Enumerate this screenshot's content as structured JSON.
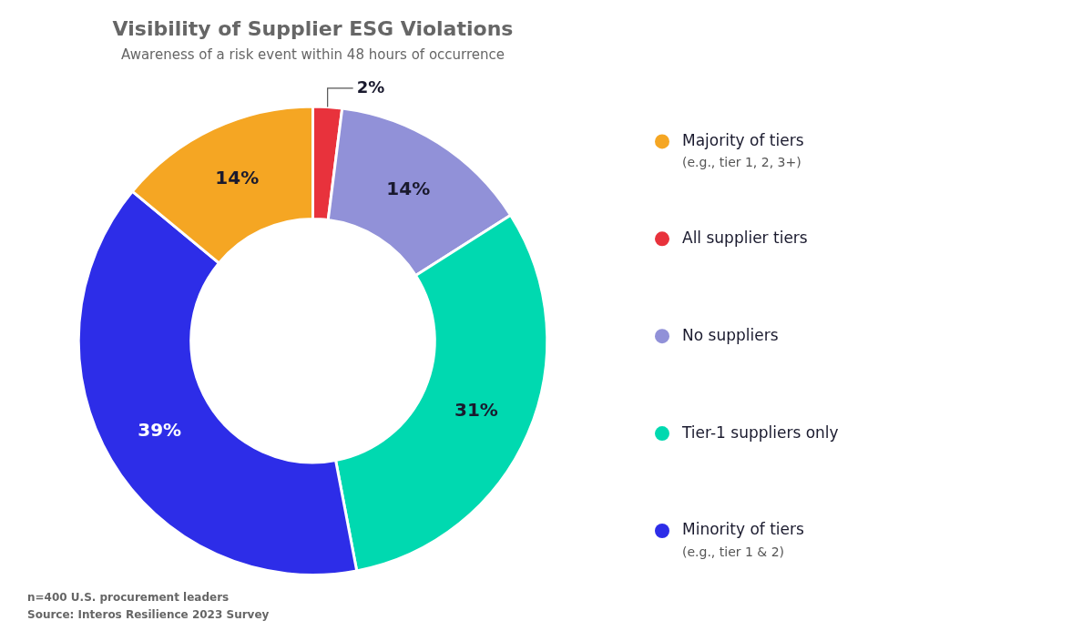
{
  "chart_data": {
    "type": "doughnut",
    "title": "Visibility of Supplier ESG Violations",
    "subtitle": "Awareness of a risk event within 48 hours of occurrence",
    "categories": [
      "All supplier tiers",
      "No suppliers",
      "Tier-1 suppliers only",
      "Minority of tiers",
      "Majority of tiers"
    ],
    "values": [
      2,
      14,
      31,
      39,
      14
    ],
    "value_labels": [
      "2%",
      "14%",
      "31%",
      "39%",
      "14%"
    ],
    "colors": [
      "#e8323c",
      "#9191d8",
      "#00d9b0",
      "#2d2de8",
      "#f5a623"
    ],
    "data_labels": true,
    "legend": "right",
    "legend_entries": [
      {
        "label": "Majority of tiers",
        "sublabel": "(e.g., tier 1, 2, 3+)"
      },
      {
        "label": "All supplier tiers"
      },
      {
        "label": "No suppliers"
      },
      {
        "label": "Tier-1 suppliers only"
      },
      {
        "label": "Minority of tiers",
        "sublabel": "(e.g., tier 1 & 2)"
      }
    ],
    "footnotes": [
      "n=400 U.S. procurement leaders",
      "Source: Interos Resilience 2023 Survey"
    ]
  }
}
